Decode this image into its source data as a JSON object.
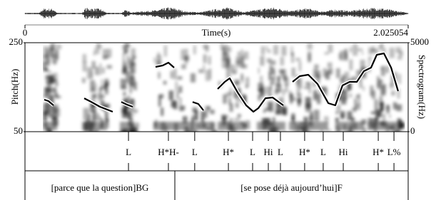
{
  "chart_data": {
    "type": "line",
    "x_label": "Time(s)",
    "y_label": "Pitch(Hz)",
    "y2_label": "Spectrogram(Hz)",
    "xlim": [
      0,
      2.025054
    ],
    "xticks": [
      0,
      2.025054
    ],
    "ylim": [
      50,
      250
    ],
    "yticks": [
      50,
      250
    ],
    "y2lim": [
      0,
      5000
    ],
    "y2ticks": [
      0,
      5000
    ],
    "color": "#000000",
    "x": [
      0.102,
      0.124,
      0.151,
      null,
      0.313,
      0.351,
      0.396,
      0.464,
      null,
      0.509,
      0.539,
      0.569,
      null,
      0.69,
      0.728,
      0.758,
      0.788,
      null,
      0.886,
      0.916,
      0.943,
      null,
      1.018,
      1.056,
      1.082,
      1.124,
      1.169,
      1.207,
      1.233,
      1.271,
      1.309,
      1.365,
      null,
      1.414,
      1.452,
      1.497,
      1.546,
      1.603,
      1.64,
      1.678,
      1.716,
      1.754,
      1.791,
      1.829,
      1.859,
      1.897,
      1.935,
      1.972
    ],
    "values": [
      122,
      118.8,
      109.2,
      null,
      125,
      116.8,
      106,
      94.8,
      null,
      116.8,
      110.8,
      106,
      null,
      195.6,
      198.8,
      205.2,
      194,
      null,
      116.8,
      112.4,
      98,
      null,
      146,
      162,
      170,
      138,
      109.2,
      94.8,
      102.8,
      125.2,
      126.8,
      109.2,
      null,
      162,
      174.8,
      178,
      157.2,
      114,
      109.2,
      154,
      162,
      162,
      186,
      194,
      222.8,
      226,
      194,
      141.2
    ],
    "tone_tier": [
      {
        "label": "L",
        "time": 0.547
      },
      {
        "label": "H*H-",
        "time": 0.758
      },
      {
        "label": "L",
        "time": 0.897
      },
      {
        "label": "H*",
        "time": 1.075
      },
      {
        "label": "L",
        "time": 1.203
      },
      {
        "label": "Hi",
        "time": 1.286
      },
      {
        "label": "L",
        "time": 1.35
      },
      {
        "label": "H*",
        "time": 1.478
      },
      {
        "label": "L",
        "time": 1.576
      },
      {
        "label": "Hi",
        "time": 1.682
      },
      {
        "label": "H*",
        "time": 1.867
      },
      {
        "label": "L%",
        "time": 1.95
      }
    ],
    "phrase_tier": {
      "boundaries": [
        0.792
      ],
      "labels": [
        "[parce que la question]BG",
        "[se pose déjà aujourd’hui]F"
      ]
    }
  }
}
